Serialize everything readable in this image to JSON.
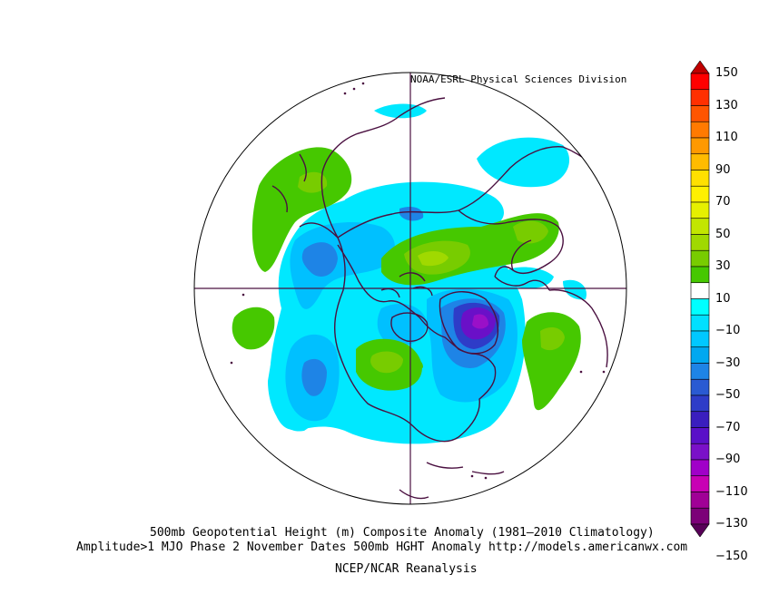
{
  "header": {
    "credit": "NOAA/ESRL Physical Sciences Division"
  },
  "footer": {
    "title_line1": "500mb Geopotential Height (m) Composite Anomaly (1981–2010 Climatology)",
    "title_line2": "Amplitude>1 MJO Phase 2 November Dates 500mb HGHT Anomaly http://models.americanwx.com",
    "source": "NCEP/NCAR Reanalysis"
  },
  "map": {
    "projection": "north polar stereographic",
    "land_outline_color": "#4a1040"
  },
  "colorbar": {
    "labels": [
      "150",
      "130",
      "110",
      "90",
      "70",
      "50",
      "30",
      "10",
      "−10",
      "−30",
      "−50",
      "−70",
      "−90",
      "−110",
      "−130",
      "−150"
    ],
    "segment_colors": [
      "#c00000",
      "#ff0000",
      "#ff3000",
      "#ff5500",
      "#ff7a00",
      "#ff9900",
      "#ffbb00",
      "#ffe000",
      "#fff000",
      "#e6f000",
      "#c2e600",
      "#a0d900",
      "#78cc00",
      "#46c800",
      "#ffffff",
      "#00ffff",
      "#00e0ff",
      "#00c8ff",
      "#00a8f0",
      "#1e84e6",
      "#2a5ad2",
      "#2e3cc8",
      "#3a1ebe",
      "#5a10c8",
      "#7a10c8",
      "#a000c8",
      "#c800b4",
      "#a00096",
      "#7c0078",
      "#580058"
    ]
  }
}
